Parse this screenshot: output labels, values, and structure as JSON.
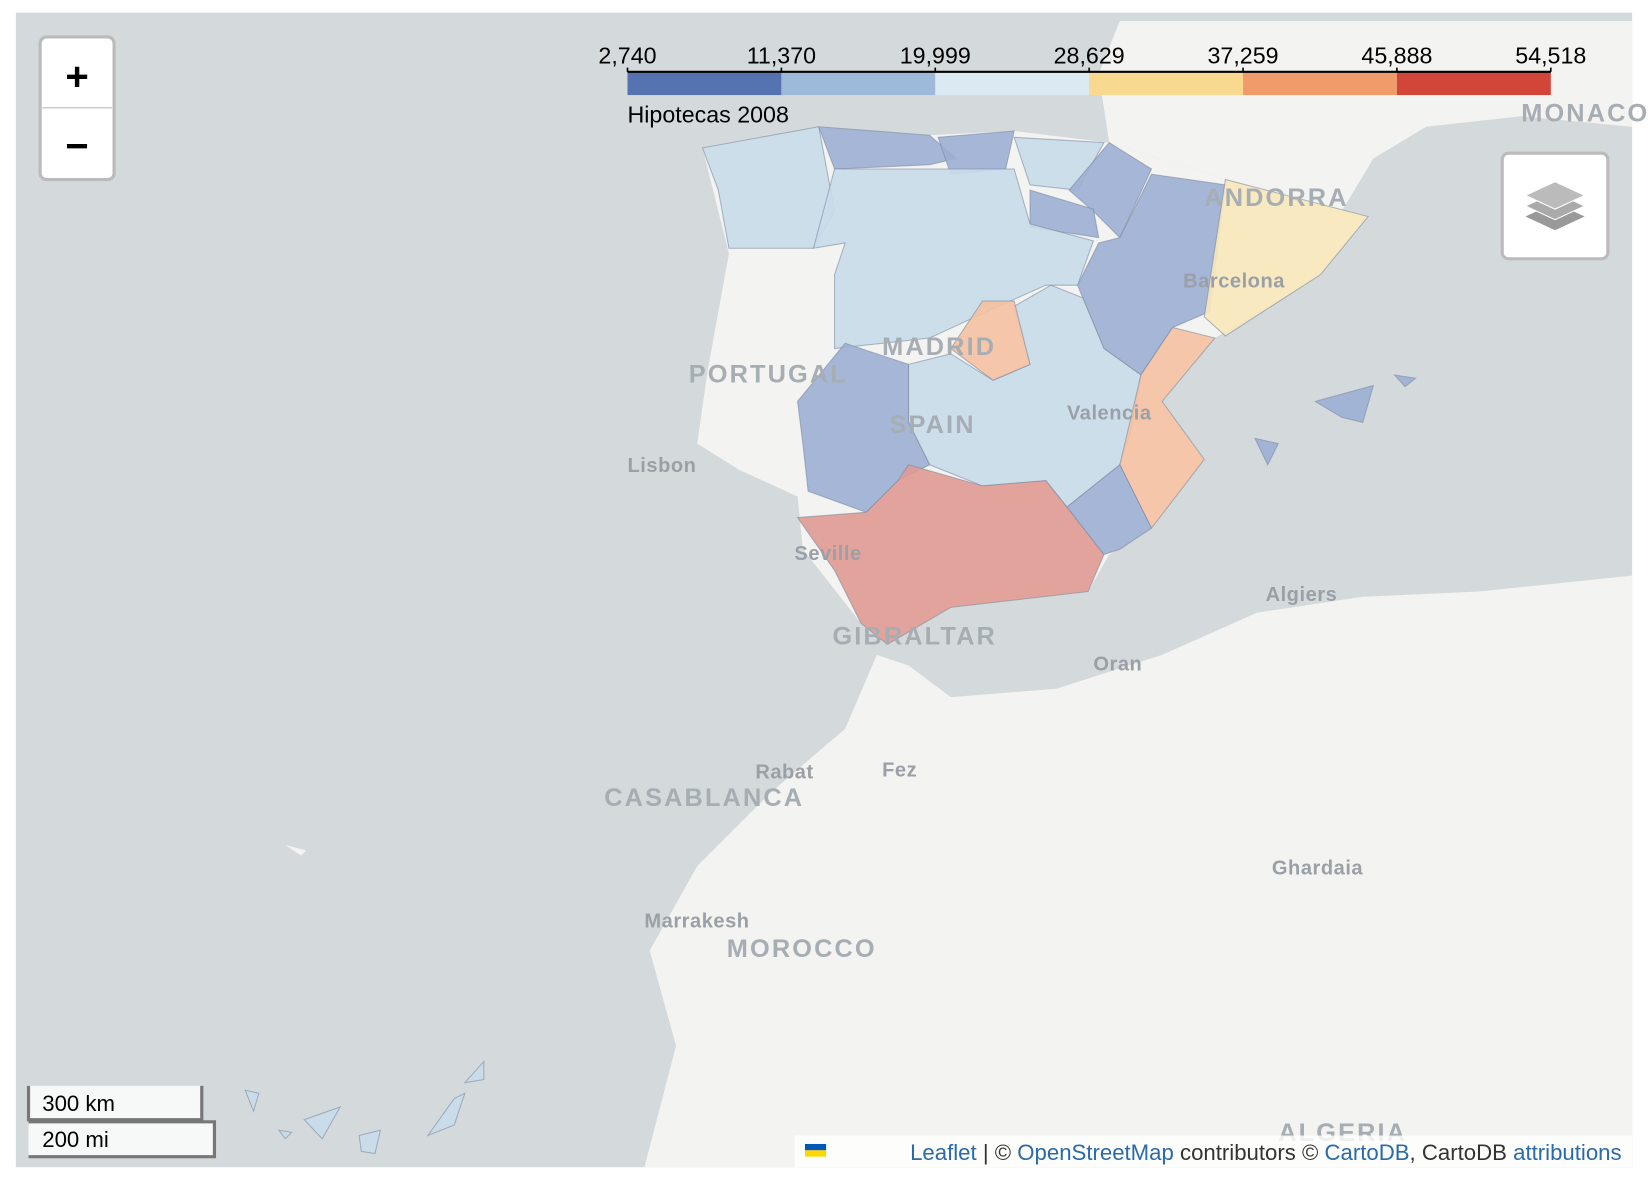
{
  "colorbar": {
    "title": "Hipotecas 2008",
    "lim": [
      2740,
      54518
    ],
    "ticks": [
      {
        "value": 2740,
        "label": "2,740"
      },
      {
        "value": 11370,
        "label": "11,370"
      },
      {
        "value": 19999,
        "label": "19,999"
      },
      {
        "value": 28629,
        "label": "28,629"
      },
      {
        "value": 37259,
        "label": "37,259"
      },
      {
        "value": 45888,
        "label": "45,888"
      },
      {
        "value": 54518,
        "label": "54,518"
      }
    ],
    "colors": [
      "#5473b0",
      "#9dbadb",
      "#dbe9f3",
      "#f8d98f",
      "#f19b6b",
      "#d2463a"
    ]
  },
  "map": {
    "labels": [
      "MONACO",
      "ANDORRA",
      "Barcelona",
      "MADRID",
      "PORTUGAL",
      "SPAIN",
      "Valencia",
      "Lisbon",
      "Seville",
      "GIBRALTAR",
      "Algiers",
      "Oran",
      "Rabat",
      "Fez",
      "CASABLANCA",
      "Marrakesh",
      "MOROCCO",
      "Ghardaia",
      "ALGERIA"
    ]
  },
  "controls": {
    "zoom_in": "+",
    "zoom_out": "−"
  },
  "scale": {
    "km": "300 km",
    "mi": "200 mi"
  },
  "attribution": {
    "leaflet": "Leaflet",
    "sep": "|",
    "copy1": "©",
    "osm": "OpenStreetMap",
    "contrib": "contributors ©",
    "cartodb": "CartoDB",
    "comma": ",",
    "cartodb2": "CartoDB",
    "attributions": "attributions"
  }
}
